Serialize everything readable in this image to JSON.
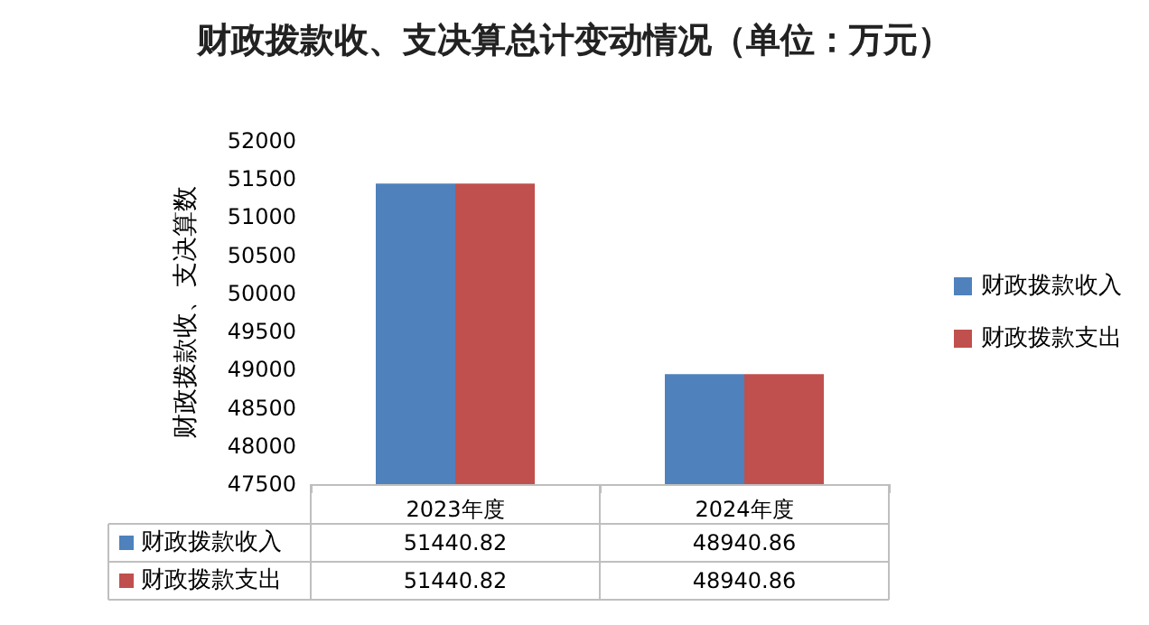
{
  "chart_data": {
    "type": "bar",
    "title": "财政拨款收、支决算总计变动情况（单位：万元）",
    "ylabel": "财政拨款收、支决算数",
    "categories": [
      "2023年度",
      "2024年度"
    ],
    "series": [
      {
        "name": "财政拨款收入",
        "color": "#4f81bd",
        "values": [
          51440.82,
          48940.86
        ]
      },
      {
        "name": "财政拨款支出",
        "color": "#c0504d",
        "values": [
          51440.82,
          48940.86
        ]
      }
    ],
    "ylim": [
      47500,
      52000
    ],
    "yticks": [
      47500,
      48000,
      48500,
      49000,
      49500,
      50000,
      50500,
      51000,
      51500,
      52000
    ],
    "legend": "right",
    "data_labels": true
  }
}
